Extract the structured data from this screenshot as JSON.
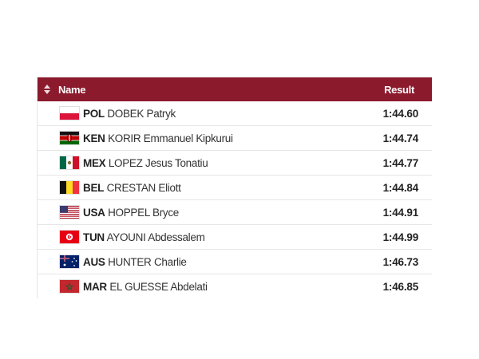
{
  "header": {
    "name_label": "Name",
    "result_label": "Result",
    "background": "#8b1a2c"
  },
  "rows": [
    {
      "code": "POL",
      "name": "DOBEK Patryk",
      "result": "1:44.60",
      "flag": "poland-flag-icon"
    },
    {
      "code": "KEN",
      "name": "KORIR Emmanuel Kipkurui",
      "result": "1:44.74",
      "flag": "kenya-flag-icon"
    },
    {
      "code": "MEX",
      "name": "LOPEZ Jesus Tonatiu",
      "result": "1:44.77",
      "flag": "mexico-flag-icon"
    },
    {
      "code": "BEL",
      "name": "CRESTAN Eliott",
      "result": "1:44.84",
      "flag": "belgium-flag-icon"
    },
    {
      "code": "USA",
      "name": "HOPPEL Bryce",
      "result": "1:44.91",
      "flag": "usa-flag-icon"
    },
    {
      "code": "TUN",
      "name": "AYOUNI Abdessalem",
      "result": "1:44.99",
      "flag": "tunisia-flag-icon"
    },
    {
      "code": "AUS",
      "name": "HUNTER Charlie",
      "result": "1:46.73",
      "flag": "australia-flag-icon"
    },
    {
      "code": "MAR",
      "name": "EL GUESSE Abdelati",
      "result": "1:46.85",
      "flag": "morocco-flag-icon"
    }
  ]
}
